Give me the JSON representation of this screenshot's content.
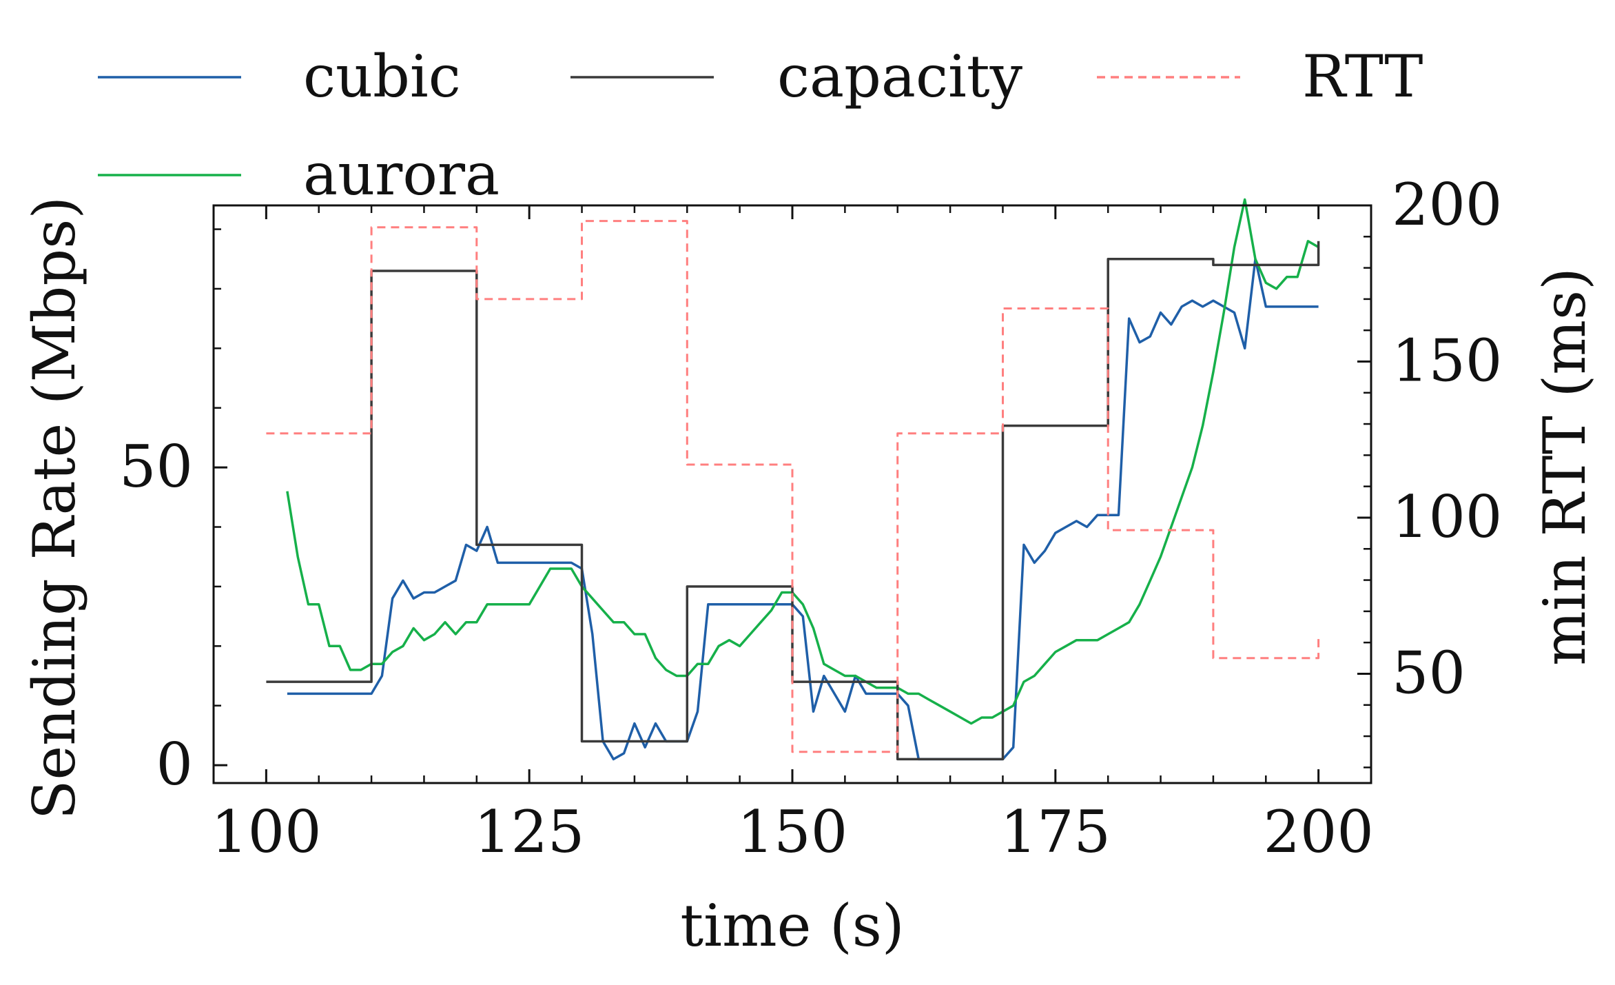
{
  "chart_data": {
    "type": "line",
    "title": "",
    "xlabel": "time (s)",
    "ylabel": "Sending Rate (Mbps)",
    "y2label": "min RTT (ms)",
    "xlim": [
      95,
      205
    ],
    "ylim": [
      -3,
      94
    ],
    "y2lim": [
      15,
      200
    ],
    "xticks": [
      100,
      125,
      150,
      175,
      200
    ],
    "xtick_labels": [
      "100",
      "125",
      "150",
      "175",
      "200"
    ],
    "yticks": [
      0,
      50
    ],
    "ytick_labels": [
      "0",
      "50"
    ],
    "y2ticks": [
      50,
      100,
      150,
      200
    ],
    "y2tick_labels": [
      "50",
      "100",
      "150",
      "200"
    ],
    "legend_position": "above the plot, left aligned, 3 columns",
    "series": [
      {
        "name": "cubic",
        "axis": "left",
        "color": "#1f5fa8",
        "style": "solid",
        "x": [
          102,
          110,
          111,
          112,
          113,
          114,
          115,
          116,
          117,
          118,
          119,
          120,
          121,
          122,
          123,
          124,
          125,
          126,
          127,
          128,
          129,
          130,
          131,
          132,
          133,
          134,
          135,
          136,
          137,
          138,
          139,
          140,
          141,
          142,
          143,
          144,
          145,
          146,
          147,
          148,
          149,
          150,
          151,
          152,
          153,
          154,
          155,
          156,
          157,
          158,
          159,
          160,
          161,
          162,
          163,
          164,
          165,
          166,
          167,
          168,
          169,
          170,
          171,
          172,
          173,
          174,
          175,
          176,
          177,
          178,
          179,
          180,
          181,
          182,
          183,
          184,
          185,
          186,
          187,
          188,
          189,
          190,
          191,
          192,
          193,
          194,
          195,
          196,
          197,
          198,
          199,
          200
        ],
        "values": [
          12,
          12,
          15,
          28,
          31,
          28,
          29,
          29,
          30,
          31,
          37,
          36,
          40,
          34,
          34,
          34,
          34,
          34,
          34,
          34,
          34,
          33,
          22,
          4,
          1,
          2,
          7,
          3,
          7,
          4,
          4,
          4,
          9,
          27,
          27,
          27,
          27,
          27,
          27,
          27,
          27,
          27,
          25,
          9,
          15,
          12,
          9,
          15,
          12,
          12,
          12,
          12,
          10,
          1,
          1,
          1,
          1,
          1,
          1,
          1,
          1,
          1,
          3,
          37,
          34,
          36,
          39,
          40,
          41,
          40,
          42,
          42,
          42,
          75,
          71,
          72,
          76,
          74,
          77,
          78,
          77,
          78,
          77,
          76,
          70,
          85,
          77,
          77,
          77,
          77,
          77,
          77
        ]
      },
      {
        "name": "aurora",
        "axis": "left",
        "color": "#16b04a",
        "style": "solid",
        "x": [
          102,
          103,
          104,
          105,
          106,
          107,
          108,
          109,
          110,
          111,
          112,
          113,
          114,
          115,
          116,
          117,
          118,
          119,
          120,
          121,
          122,
          123,
          124,
          125,
          126,
          127,
          128,
          129,
          130,
          131,
          132,
          133,
          134,
          135,
          136,
          137,
          138,
          139,
          140,
          141,
          142,
          143,
          144,
          145,
          146,
          147,
          148,
          149,
          150,
          151,
          152,
          153,
          154,
          155,
          156,
          157,
          158,
          159,
          160,
          161,
          162,
          163,
          164,
          165,
          166,
          167,
          168,
          169,
          170,
          171,
          172,
          173,
          174,
          175,
          176,
          177,
          178,
          179,
          180,
          181,
          182,
          183,
          184,
          185,
          186,
          187,
          188,
          189,
          190,
          191,
          192,
          193,
          194,
          195,
          196,
          197,
          198,
          199,
          200
        ],
        "values": [
          46,
          35,
          27,
          27,
          20,
          20,
          16,
          16,
          17,
          17,
          19,
          20,
          23,
          21,
          22,
          24,
          22,
          24,
          24,
          27,
          27,
          27,
          27,
          27,
          30,
          33,
          33,
          33,
          30,
          28,
          26,
          24,
          24,
          22,
          22,
          18,
          16,
          15,
          15,
          17,
          17,
          20,
          21,
          20,
          22,
          24,
          26,
          29,
          29,
          27,
          23,
          17,
          16,
          15,
          15,
          14,
          13,
          13,
          13,
          12,
          12,
          11,
          10,
          9,
          8,
          7,
          8,
          8,
          9,
          10,
          14,
          15,
          17,
          19,
          20,
          21,
          21,
          21,
          22,
          23,
          24,
          27,
          31,
          35,
          40,
          45,
          50,
          57,
          66,
          76,
          87,
          95,
          85,
          81,
          80,
          82,
          82,
          88,
          87
        ]
      },
      {
        "name": "capacity",
        "axis": "left",
        "color": "#3a3a3a",
        "style": "step",
        "x": [
          100,
          110,
          110,
          120,
          120,
          130,
          130,
          140,
          140,
          150,
          150,
          160,
          160,
          170,
          170,
          180,
          180,
          190,
          190,
          200,
          200
        ],
        "values": [
          14,
          14,
          83,
          83,
          37,
          37,
          4,
          4,
          30,
          30,
          14,
          14,
          1,
          1,
          57,
          57,
          85,
          85,
          84,
          84,
          88
        ]
      },
      {
        "name": "RTT",
        "axis": "right",
        "color": "#ff7f7f",
        "style": "dashed step",
        "x": [
          100,
          110,
          110,
          120,
          120,
          130,
          130,
          140,
          140,
          150,
          150,
          160,
          160,
          170,
          170,
          180,
          180,
          190,
          190,
          200,
          200
        ],
        "values": [
          127,
          127,
          193,
          193,
          170,
          170,
          195,
          195,
          117,
          117,
          25,
          25,
          127,
          127,
          167,
          167,
          96,
          96,
          55,
          55,
          62
        ]
      }
    ],
    "legend": [
      {
        "name": "cubic",
        "color": "#1f5fa8",
        "dashed": false
      },
      {
        "name": "capacity",
        "color": "#3a3a3a",
        "dashed": false
      },
      {
        "name": "RTT",
        "color": "#ff7f7f",
        "dashed": true
      },
      {
        "name": "aurora",
        "color": "#16b04a",
        "dashed": false
      }
    ]
  }
}
